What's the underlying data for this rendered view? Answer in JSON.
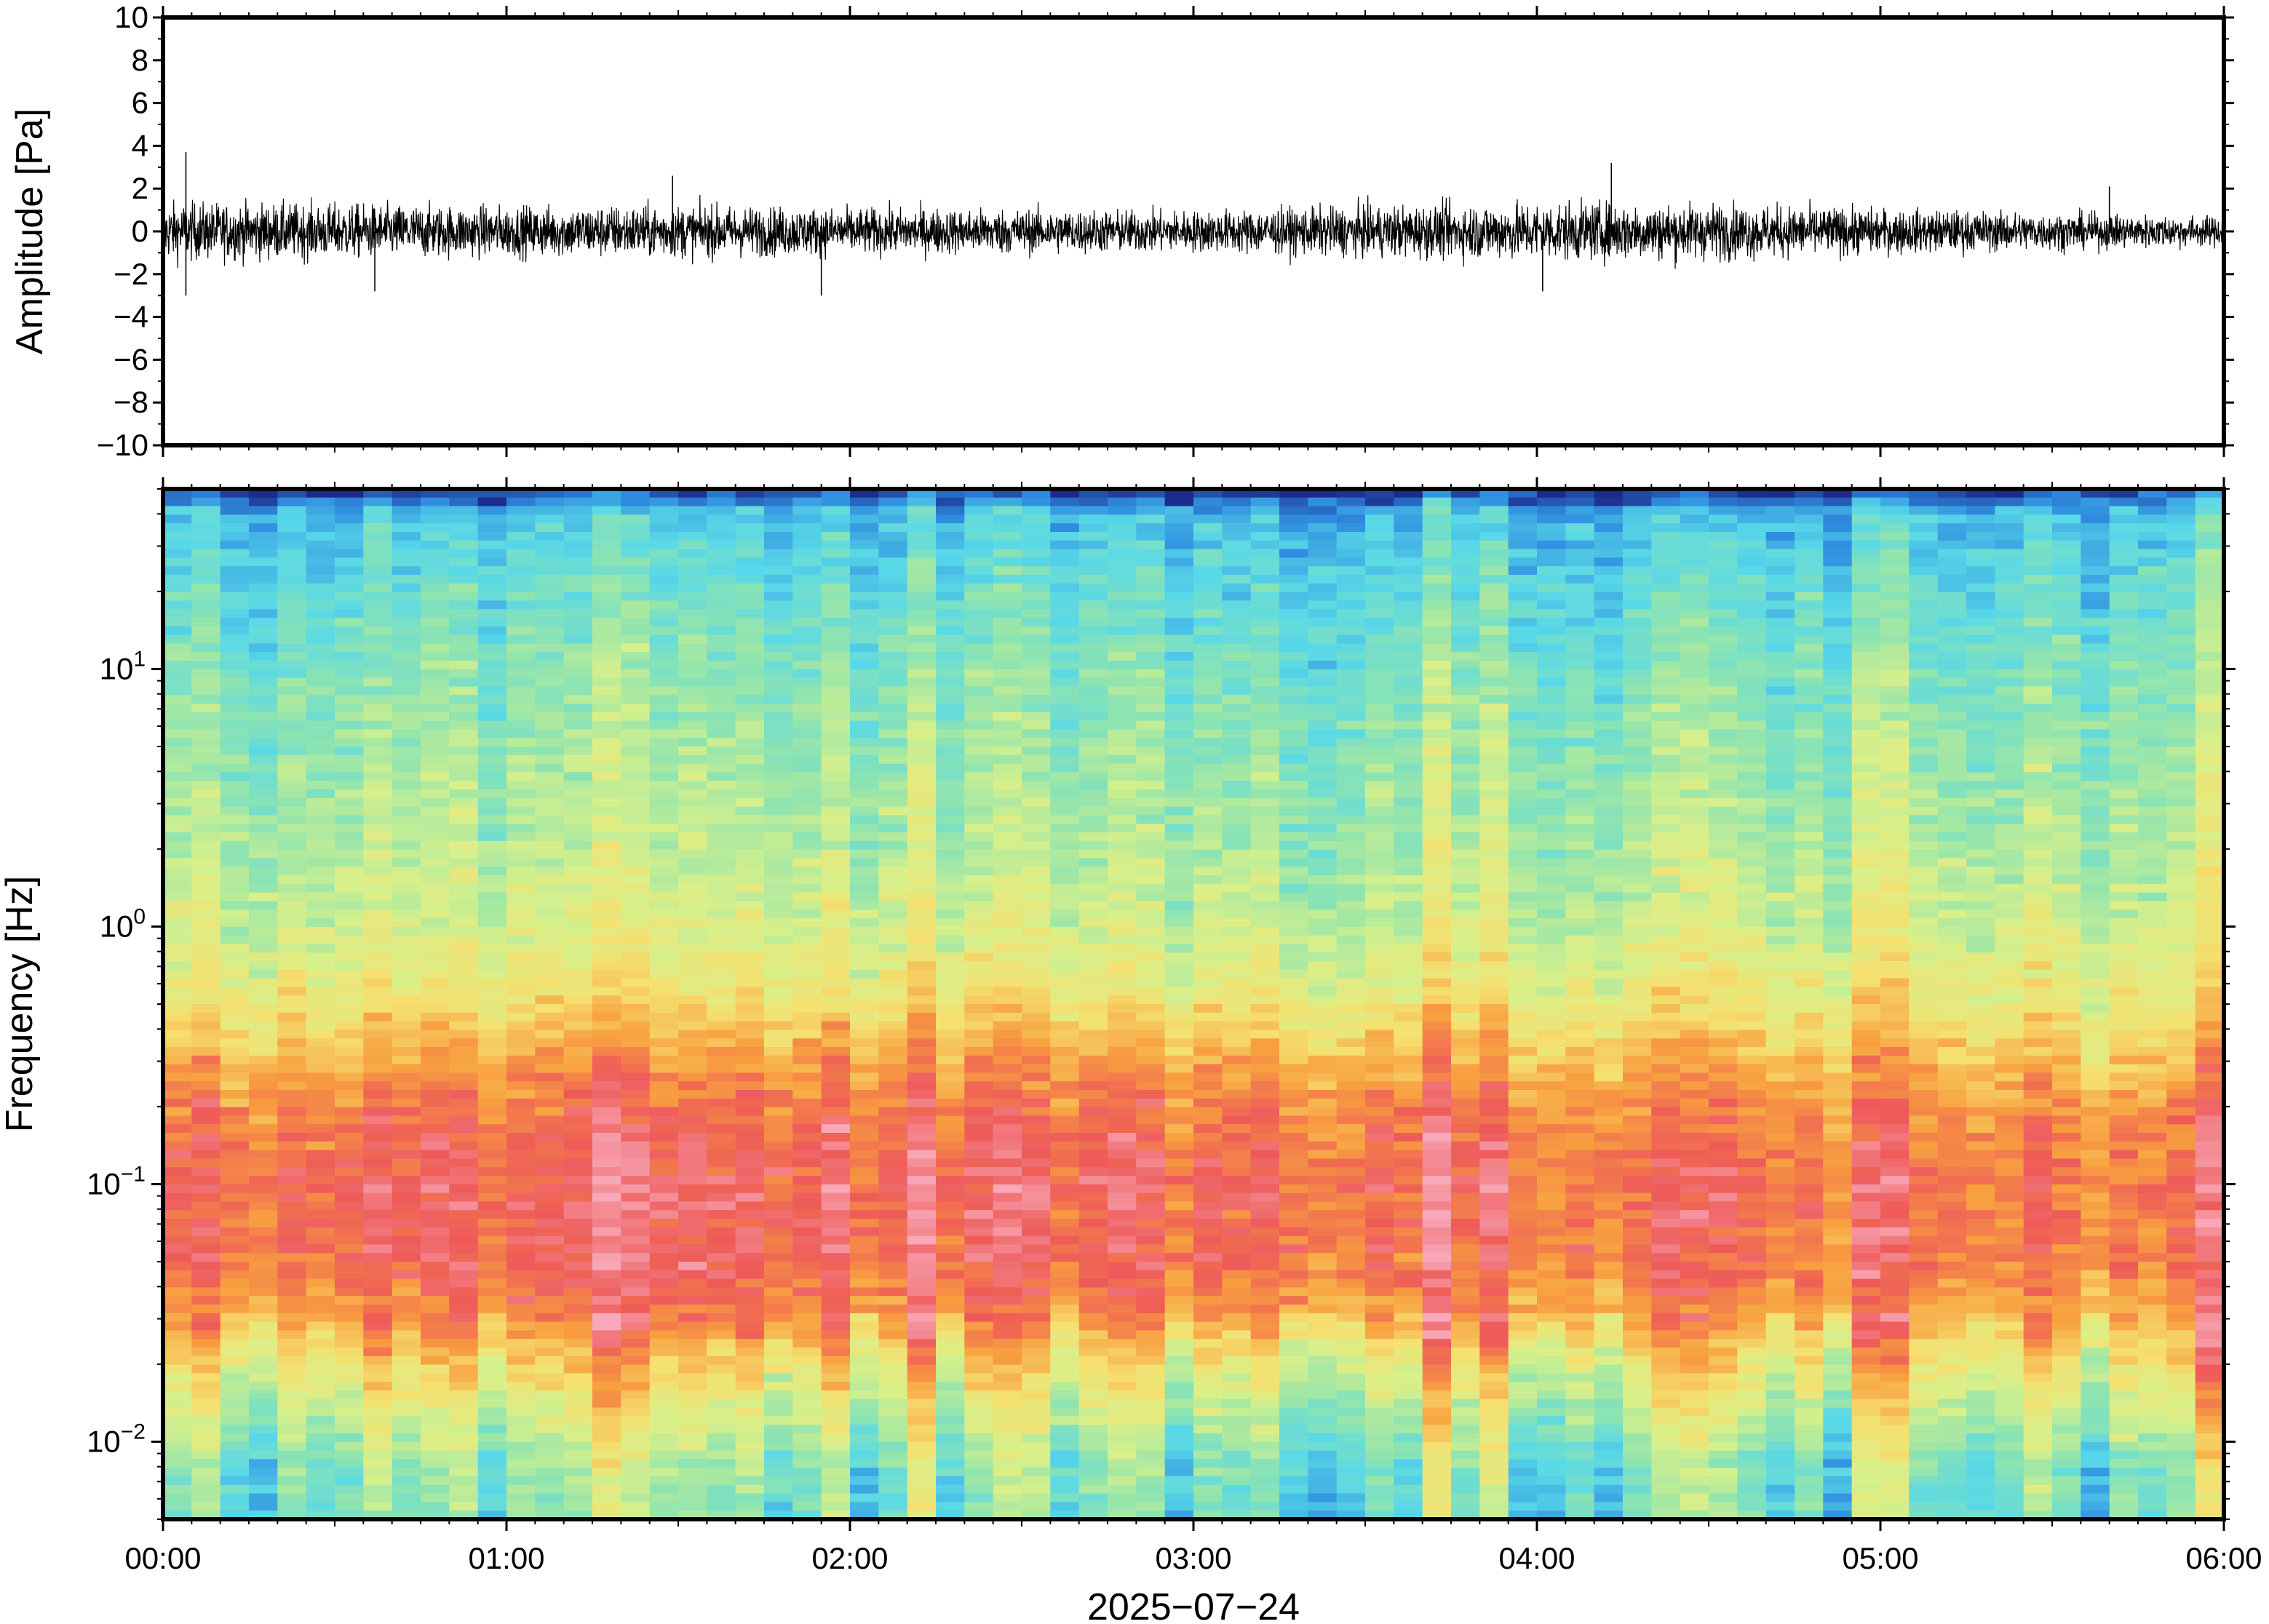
{
  "chart_data": [
    {
      "type": "line",
      "panel": "waveform",
      "ylabel": "Amplitude [Pa]",
      "ylim": [
        -10,
        10
      ],
      "yticks": [
        {
          "value": 10,
          "label": "10"
        },
        {
          "value": 8,
          "label": "8"
        },
        {
          "value": 6,
          "label": "6"
        },
        {
          "value": 4,
          "label": "4"
        },
        {
          "value": 2,
          "label": "2"
        },
        {
          "value": 0,
          "label": "0"
        },
        {
          "value": -2,
          "label": "−2"
        },
        {
          "value": -4,
          "label": "−4"
        },
        {
          "value": -6,
          "label": "−6"
        },
        {
          "value": -8,
          "label": "−8"
        },
        {
          "value": -10,
          "label": "−10"
        }
      ],
      "xlim": [
        "00:00",
        "06:00"
      ],
      "envelope": {
        "note": "approximate noise envelope",
        "x": [
          "00:00",
          "00:30",
          "01:00",
          "01:30",
          "02:00",
          "02:30",
          "03:00",
          "03:30",
          "04:00",
          "04:30",
          "05:00",
          "05:30",
          "06:00"
        ],
        "upper": [
          1.5,
          1.4,
          1.3,
          1.4,
          1.2,
          1.2,
          1.1,
          1.3,
          1.5,
          1.5,
          1.2,
          1.0,
          0.8
        ],
        "lower": [
          -1.6,
          -1.5,
          -1.4,
          -1.4,
          -1.3,
          -1.2,
          -1.1,
          -1.4,
          -1.6,
          -1.5,
          -1.2,
          -1.0,
          -0.8
        ]
      },
      "spikes": [
        {
          "x": "00:04",
          "y": 3.7
        },
        {
          "x": "00:04",
          "y": -3.0
        },
        {
          "x": "00:37",
          "y": -2.8
        },
        {
          "x": "01:29",
          "y": 2.6
        },
        {
          "x": "01:55",
          "y": -3.0
        },
        {
          "x": "04:13",
          "y": 3.2
        },
        {
          "x": "04:01",
          "y": -2.8
        },
        {
          "x": "05:40",
          "y": 2.1
        }
      ]
    },
    {
      "type": "heatmap",
      "panel": "spectrogram",
      "ylabel": "Frequency [Hz]",
      "yscale": "log",
      "ylim": [
        0.005,
        50
      ],
      "yticks": [
        {
          "value": 0.01,
          "base": "10",
          "exp": "−2"
        },
        {
          "value": 0.1,
          "base": "10",
          "exp": "−1"
        },
        {
          "value": 1,
          "base": "10",
          "exp": "0"
        },
        {
          "value": 10,
          "base": "10",
          "exp": "1"
        }
      ],
      "xlabel": "2025−07−24",
      "xticks": [
        "00:00",
        "01:00",
        "02:00",
        "03:00",
        "04:00",
        "05:00",
        "06:00"
      ],
      "colormap": [
        "#1b2a8c",
        "#2f8ee0",
        "#58d8e8",
        "#8ee4b0",
        "#d8f08a",
        "#f5e070",
        "#f8a040",
        "#ee5a58",
        "#f8a8b8"
      ],
      "column_minutes": 5,
      "power_profile": {
        "note": "relative power 0-1 by frequency (approximate)",
        "freq_hz": [
          0.005,
          0.008,
          0.012,
          0.02,
          0.03,
          0.05,
          0.1,
          0.2,
          0.3,
          0.5,
          1,
          2,
          5,
          10,
          20,
          40,
          48
        ],
        "power": [
          0.35,
          0.38,
          0.48,
          0.62,
          0.76,
          0.84,
          0.86,
          0.8,
          0.72,
          0.6,
          0.5,
          0.45,
          0.4,
          0.36,
          0.3,
          0.22,
          0.05
        ]
      }
    }
  ]
}
